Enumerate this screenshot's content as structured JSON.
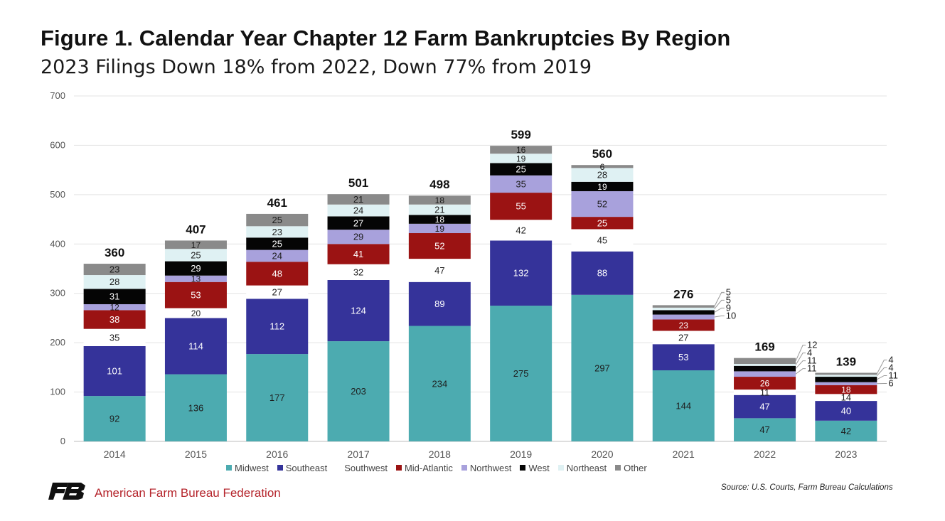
{
  "header": {
    "title": "Figure 1. Calendar Year Chapter 12 Farm Bankruptcies By Region",
    "subtitle": "2023 Filings Down 18% from 2022, Down 77% from 2019"
  },
  "footer": {
    "org_name": "American Farm Bureau Federation",
    "source": "Source: U.S. Courts, Farm Bureau Calculations",
    "logo_icon": "fb-logo-icon"
  },
  "colors": {
    "Midwest": "#4cabb0",
    "Southeast": "#35339a",
    "Southwest": "#ffffff",
    "Mid-Atlantic": "#9b1313",
    "Northwest": "#a8a1dc",
    "West": "#050505",
    "Northeast": "#dff1f3",
    "Other": "#8a8a8a",
    "brand": "#b5252c"
  },
  "chart_data": {
    "type": "bar",
    "stacked": true,
    "title": "Figure 1. Calendar Year Chapter 12 Farm Bankruptcies By Region",
    "subtitle": "2023 Filings Down 18% from 2022, Down 77% from 2019",
    "xlabel": "",
    "ylabel": "",
    "ylim": [
      0,
      700
    ],
    "yticks": [
      0,
      100,
      200,
      300,
      400,
      500,
      600,
      700
    ],
    "grid": true,
    "legend_position": "bottom",
    "categories": [
      "2014",
      "2015",
      "2016",
      "2017",
      "2018",
      "2019",
      "2020",
      "2021",
      "2022",
      "2023"
    ],
    "totals": [
      360,
      407,
      461,
      501,
      498,
      599,
      560,
      276,
      169,
      139
    ],
    "series": [
      {
        "name": "Midwest",
        "values": [
          92,
          136,
          177,
          203,
          234,
          275,
          297,
          144,
          47,
          42
        ]
      },
      {
        "name": "Southeast",
        "values": [
          101,
          114,
          112,
          124,
          89,
          132,
          88,
          53,
          47,
          40
        ]
      },
      {
        "name": "Southwest",
        "values": [
          35,
          20,
          27,
          32,
          47,
          42,
          45,
          27,
          11,
          14
        ]
      },
      {
        "name": "Mid-Atlantic",
        "values": [
          38,
          53,
          48,
          41,
          52,
          55,
          25,
          23,
          26,
          18
        ]
      },
      {
        "name": "Northwest",
        "values": [
          12,
          13,
          24,
          29,
          19,
          35,
          52,
          10,
          11,
          6
        ]
      },
      {
        "name": "West",
        "values": [
          31,
          29,
          25,
          27,
          18,
          25,
          19,
          9,
          11,
          11
        ]
      },
      {
        "name": "Northeast",
        "values": [
          28,
          25,
          23,
          24,
          21,
          19,
          28,
          5,
          4,
          4
        ]
      },
      {
        "name": "Other",
        "values": [
          23,
          17,
          25,
          21,
          18,
          16,
          6,
          5,
          12,
          4
        ]
      }
    ],
    "callout_years": [
      "2021",
      "2022",
      "2023"
    ]
  }
}
